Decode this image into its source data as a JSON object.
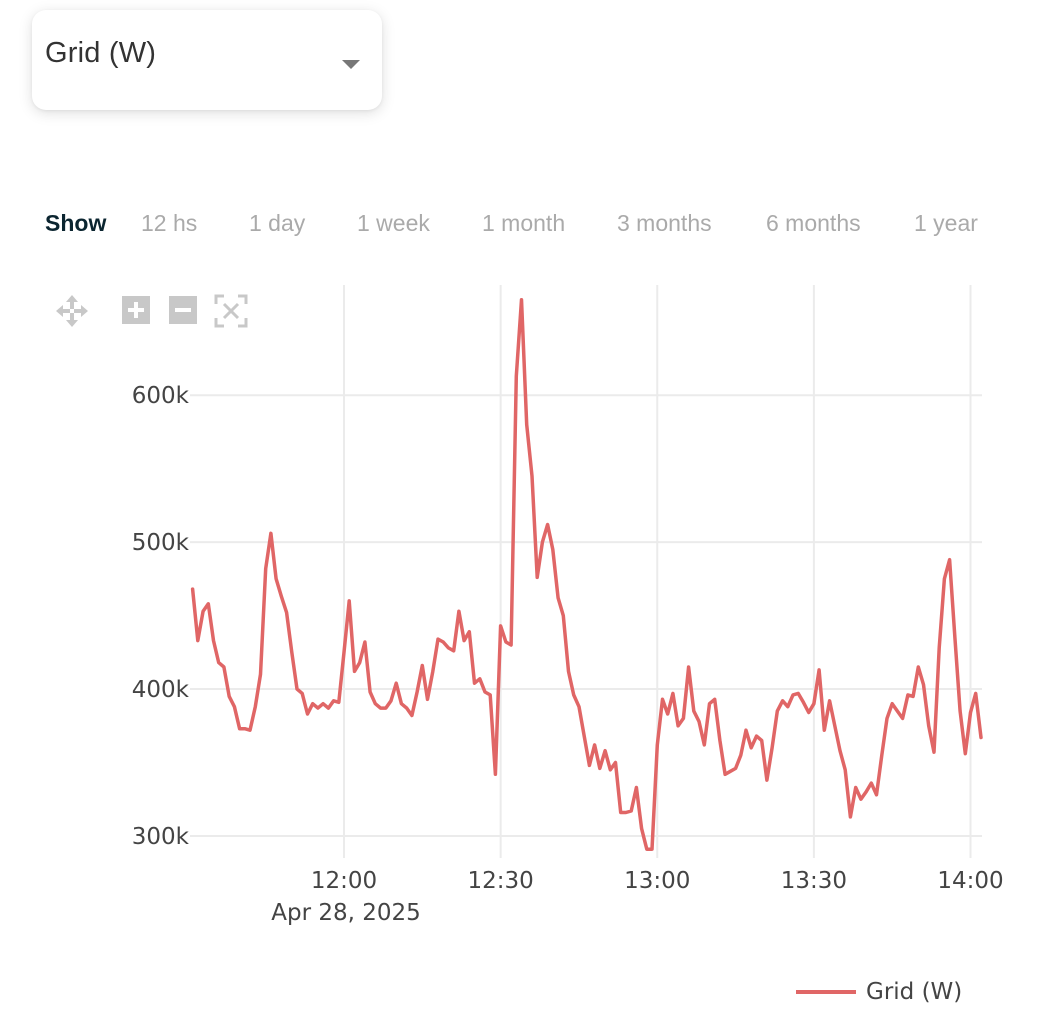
{
  "selector": {
    "label": "Grid (W)",
    "arrow_icon": "caret-down-icon"
  },
  "range": {
    "show_label": "Show",
    "options": [
      "12 hs",
      "1 day",
      "1 week",
      "1 month",
      "3 months",
      "6 months",
      "1 year"
    ]
  },
  "modebar": {
    "icons": [
      "pan-icon",
      "zoom-in-icon",
      "zoom-out-icon",
      "autoscale-icon"
    ]
  },
  "legend": {
    "label": "Grid (W)"
  },
  "chart_data": {
    "type": "line",
    "x_ticks": [
      "12:00",
      "12:30",
      "13:00",
      "13:30",
      "14:00"
    ],
    "x_date_label": "Apr 28, 2025",
    "y_ticks": [
      "300k",
      "400k",
      "500k",
      "600k"
    ],
    "ylim": [
      285000,
      675000
    ],
    "grid": true,
    "legend_position": "bottom-right",
    "series": [
      {
        "name": "Grid (W)",
        "color": "#e06666",
        "points": [
          [
            "11:31",
            468000
          ],
          [
            "11:32",
            433000
          ],
          [
            "11:33",
            453000
          ],
          [
            "11:34",
            458000
          ],
          [
            "11:35",
            433000
          ],
          [
            "11:36",
            418000
          ],
          [
            "11:37",
            415000
          ],
          [
            "11:38",
            395000
          ],
          [
            "11:39",
            388000
          ],
          [
            "11:40",
            373000
          ],
          [
            "11:41",
            373000
          ],
          [
            "11:42",
            372000
          ],
          [
            "11:43",
            388000
          ],
          [
            "11:44",
            410000
          ],
          [
            "11:45",
            482000
          ],
          [
            "11:46",
            506000
          ],
          [
            "11:47",
            475000
          ],
          [
            "11:48",
            463000
          ],
          [
            "11:49",
            452000
          ],
          [
            "11:50",
            425000
          ],
          [
            "11:51",
            400000
          ],
          [
            "11:52",
            397000
          ],
          [
            "11:53",
            383000
          ],
          [
            "11:54",
            390000
          ],
          [
            "11:55",
            387000
          ],
          [
            "11:56",
            390000
          ],
          [
            "11:57",
            387000
          ],
          [
            "11:58",
            392000
          ],
          [
            "11:59",
            391000
          ],
          [
            "12:00",
            425000
          ],
          [
            "12:01",
            460000
          ],
          [
            "12:02",
            412000
          ],
          [
            "12:03",
            418000
          ],
          [
            "12:04",
            432000
          ],
          [
            "12:05",
            398000
          ],
          [
            "12:06",
            390000
          ],
          [
            "12:07",
            387000
          ],
          [
            "12:08",
            387000
          ],
          [
            "12:09",
            392000
          ],
          [
            "12:10",
            404000
          ],
          [
            "12:11",
            390000
          ],
          [
            "12:12",
            387000
          ],
          [
            "12:13",
            382000
          ],
          [
            "12:14",
            398000
          ],
          [
            "12:15",
            416000
          ],
          [
            "12:16",
            393000
          ],
          [
            "12:17",
            412000
          ],
          [
            "12:18",
            434000
          ],
          [
            "12:19",
            432000
          ],
          [
            "12:20",
            428000
          ],
          [
            "12:21",
            426000
          ],
          [
            "12:22",
            453000
          ],
          [
            "12:23",
            433000
          ],
          [
            "12:24",
            439000
          ],
          [
            "12:25",
            404000
          ],
          [
            "12:26",
            407000
          ],
          [
            "12:27",
            398000
          ],
          [
            "12:28",
            396000
          ],
          [
            "12:29",
            342000
          ],
          [
            "12:30",
            443000
          ],
          [
            "12:31",
            432000
          ],
          [
            "12:32",
            430000
          ],
          [
            "12:33",
            613000
          ],
          [
            "12:34",
            665000
          ],
          [
            "12:35",
            580000
          ],
          [
            "12:36",
            545000
          ],
          [
            "12:37",
            476000
          ],
          [
            "12:38",
            500000
          ],
          [
            "12:39",
            512000
          ],
          [
            "12:40",
            495000
          ],
          [
            "12:41",
            462000
          ],
          [
            "12:42",
            450000
          ],
          [
            "12:43",
            412000
          ],
          [
            "12:44",
            396000
          ],
          [
            "12:45",
            388000
          ],
          [
            "12:46",
            368000
          ],
          [
            "12:47",
            348000
          ],
          [
            "12:48",
            362000
          ],
          [
            "12:49",
            346000
          ],
          [
            "12:50",
            358000
          ],
          [
            "12:51",
            345000
          ],
          [
            "12:52",
            350000
          ],
          [
            "12:53",
            316000
          ],
          [
            "12:54",
            316000
          ],
          [
            "12:55",
            317000
          ],
          [
            "12:56",
            333000
          ],
          [
            "12:57",
            305000
          ],
          [
            "12:58",
            291000
          ],
          [
            "12:59",
            291000
          ],
          [
            "13:00",
            362000
          ],
          [
            "13:01",
            393000
          ],
          [
            "13:02",
            383000
          ],
          [
            "13:03",
            397000
          ],
          [
            "13:04",
            375000
          ],
          [
            "13:05",
            380000
          ],
          [
            "13:06",
            415000
          ],
          [
            "13:07",
            385000
          ],
          [
            "13:08",
            378000
          ],
          [
            "13:09",
            362000
          ],
          [
            "13:10",
            390000
          ],
          [
            "13:11",
            393000
          ],
          [
            "13:12",
            365000
          ],
          [
            "13:13",
            342000
          ],
          [
            "13:14",
            344000
          ],
          [
            "13:15",
            346000
          ],
          [
            "13:16",
            355000
          ],
          [
            "13:17",
            372000
          ],
          [
            "13:18",
            360000
          ],
          [
            "13:19",
            368000
          ],
          [
            "13:20",
            365000
          ],
          [
            "13:21",
            338000
          ],
          [
            "13:22",
            360000
          ],
          [
            "13:23",
            385000
          ],
          [
            "13:24",
            392000
          ],
          [
            "13:25",
            388000
          ],
          [
            "13:26",
            396000
          ],
          [
            "13:27",
            397000
          ],
          [
            "13:28",
            391000
          ],
          [
            "13:29",
            384000
          ],
          [
            "13:30",
            390000
          ],
          [
            "13:31",
            413000
          ],
          [
            "13:32",
            372000
          ],
          [
            "13:33",
            392000
          ],
          [
            "13:34",
            375000
          ],
          [
            "13:35",
            358000
          ],
          [
            "13:36",
            345000
          ],
          [
            "13:37",
            313000
          ],
          [
            "13:38",
            333000
          ],
          [
            "13:39",
            325000
          ],
          [
            "13:40",
            330000
          ],
          [
            "13:41",
            336000
          ],
          [
            "13:42",
            328000
          ],
          [
            "13:43",
            355000
          ],
          [
            "13:44",
            380000
          ],
          [
            "13:45",
            390000
          ],
          [
            "13:46",
            385000
          ],
          [
            "13:47",
            380000
          ],
          [
            "13:48",
            396000
          ],
          [
            "13:49",
            395000
          ],
          [
            "13:50",
            415000
          ],
          [
            "13:51",
            403000
          ],
          [
            "13:52",
            375000
          ],
          [
            "13:53",
            357000
          ],
          [
            "13:54",
            428000
          ],
          [
            "13:55",
            475000
          ],
          [
            "13:56",
            488000
          ],
          [
            "13:57",
            435000
          ],
          [
            "13:58",
            385000
          ],
          [
            "13:59",
            356000
          ],
          [
            "14:00",
            384000
          ],
          [
            "14:01",
            397000
          ],
          [
            "14:02",
            367000
          ]
        ]
      }
    ]
  }
}
